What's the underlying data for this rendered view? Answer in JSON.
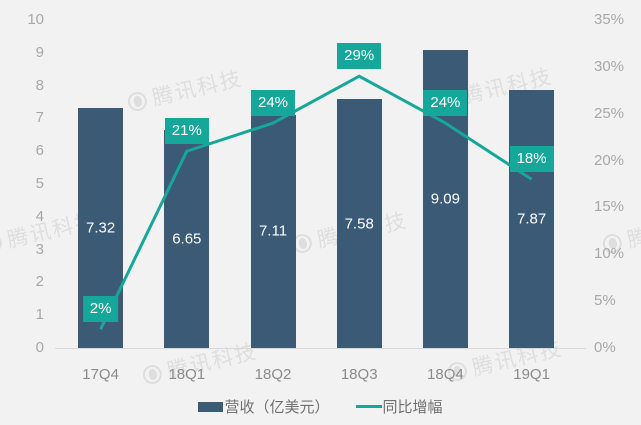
{
  "watermark": {
    "text": "腾讯科技"
  },
  "colors": {
    "background": "#f2f2f2",
    "bar": "#3b5a76",
    "line": "#16a79b",
    "percent_box": "#16a79b",
    "bar_label_text": "#ffffff",
    "percent_label_text": "#ffffff",
    "axis_tick_text": "#a8a8a8",
    "category_text": "#8b8b8b",
    "legend_text": "#707070",
    "axis_line": "#d8d8d8"
  },
  "chart_data": {
    "type": "bar",
    "subtype": "combo-bar-line-dual-axis",
    "title": "",
    "categories": [
      "17Q4",
      "18Q1",
      "18Q2",
      "18Q3",
      "18Q4",
      "19Q1"
    ],
    "series": [
      {
        "name": "营收（亿美元）",
        "type": "bar",
        "axis": "left",
        "values": [
          7.32,
          6.65,
          7.11,
          7.58,
          9.09,
          7.87
        ],
        "labels": [
          "7.32",
          "6.65",
          "7.11",
          "7.58",
          "9.09",
          "7.87"
        ]
      },
      {
        "name": "同比增幅",
        "type": "line",
        "axis": "right",
        "values": [
          2,
          21,
          24,
          29,
          24,
          18
        ],
        "labels": [
          "2%",
          "21%",
          "24%",
          "29%",
          "24%",
          "18%"
        ]
      }
    ],
    "left_axis": {
      "min": 0,
      "max": 10,
      "step": 1,
      "ticks": [
        "0",
        "1",
        "2",
        "3",
        "4",
        "5",
        "6",
        "7",
        "8",
        "9",
        "10"
      ]
    },
    "right_axis": {
      "min": 0,
      "max": 35,
      "step": 5,
      "ticks": [
        "0%",
        "5%",
        "10%",
        "15%",
        "20%",
        "25%",
        "30%",
        "35%"
      ]
    },
    "grid": false,
    "legend_position": "bottom"
  },
  "legend": {
    "items": [
      {
        "label": "营收（亿美元）",
        "marker": "bar"
      },
      {
        "label": "同比增幅",
        "marker": "line"
      }
    ]
  }
}
